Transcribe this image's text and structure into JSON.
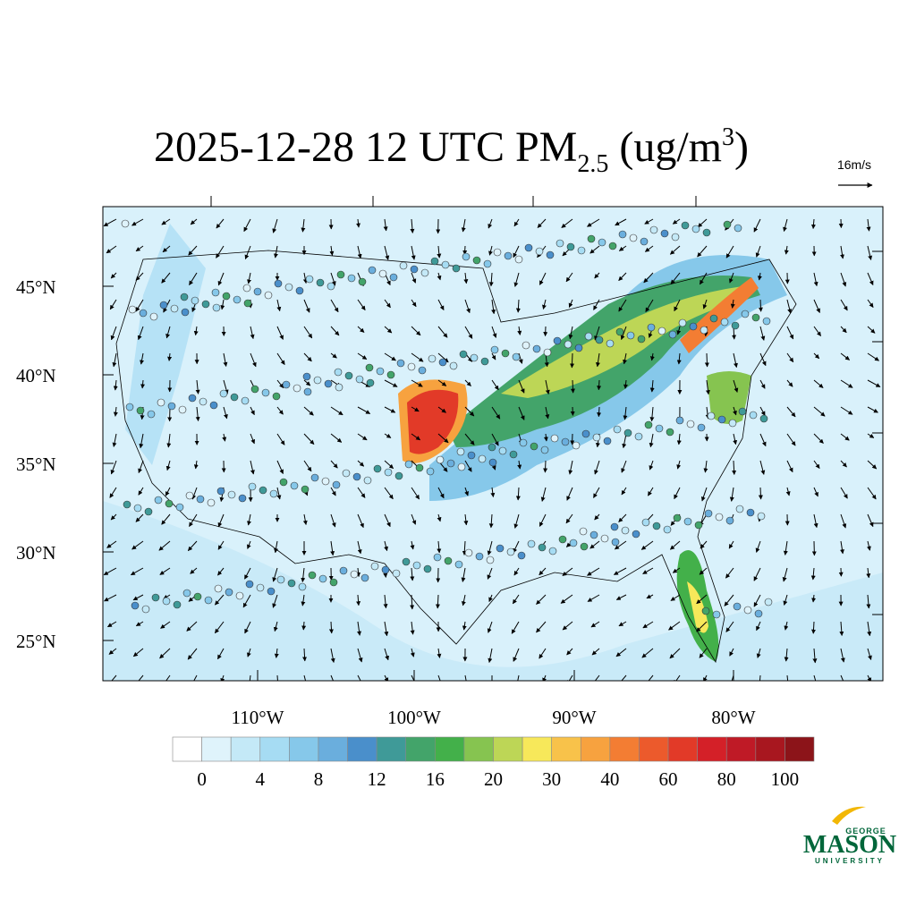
{
  "title": {
    "main": "2025-12-28 12 UTC PM",
    "sub": "2.5",
    "unit_open": " (ug/m",
    "sup": "3",
    "unit_close": ")"
  },
  "reference_vector": "16m/s",
  "map": {
    "lat_labels": [
      "45°N",
      "40°N",
      "35°N",
      "30°N",
      "25°N"
    ],
    "lon_labels": [
      "110°W",
      "100°W",
      "90°W",
      "80°W"
    ]
  },
  "colorbar": {
    "colors": [
      "#ffffff",
      "#dff3fb",
      "#c4e9f7",
      "#a6dcf3",
      "#86c8ea",
      "#6aaedd",
      "#4a8fcb",
      "#3f9a98",
      "#43a46a",
      "#43b04a",
      "#86c450",
      "#bdd656",
      "#f7e85a",
      "#f8c24a",
      "#f7a23f",
      "#f37d33",
      "#ec5a2c",
      "#e23a28",
      "#d42028",
      "#bf1a26",
      "#a8171f",
      "#8c1419"
    ],
    "ticks": [
      0,
      4,
      8,
      12,
      16,
      20,
      30,
      40,
      60,
      80,
      100
    ]
  },
  "logo": {
    "top": "GEORGE",
    "name": "MASON",
    "bottom": "UNIVERSITY"
  }
}
